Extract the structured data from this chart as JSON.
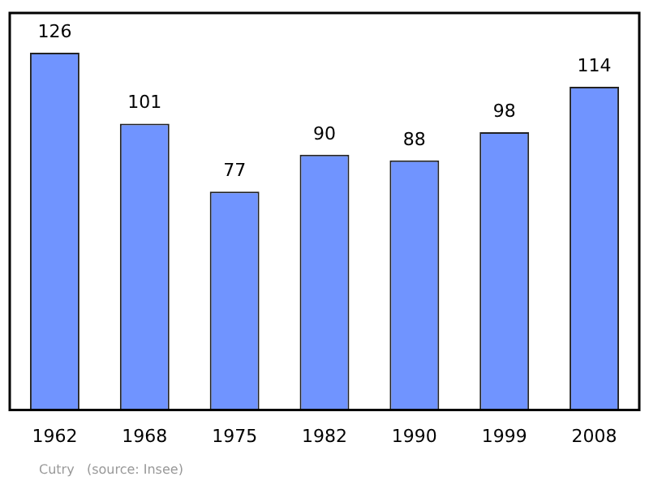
{
  "chart_data": {
    "type": "bar",
    "categories": [
      "1962",
      "1968",
      "1975",
      "1982",
      "1990",
      "1999",
      "2008"
    ],
    "values": [
      126,
      101,
      77,
      90,
      88,
      98,
      114
    ],
    "color": "#7094ff",
    "data_labels": true,
    "grid": false,
    "legend": false,
    "annotations": [
      "Cutry   (source: Insee)"
    ]
  }
}
